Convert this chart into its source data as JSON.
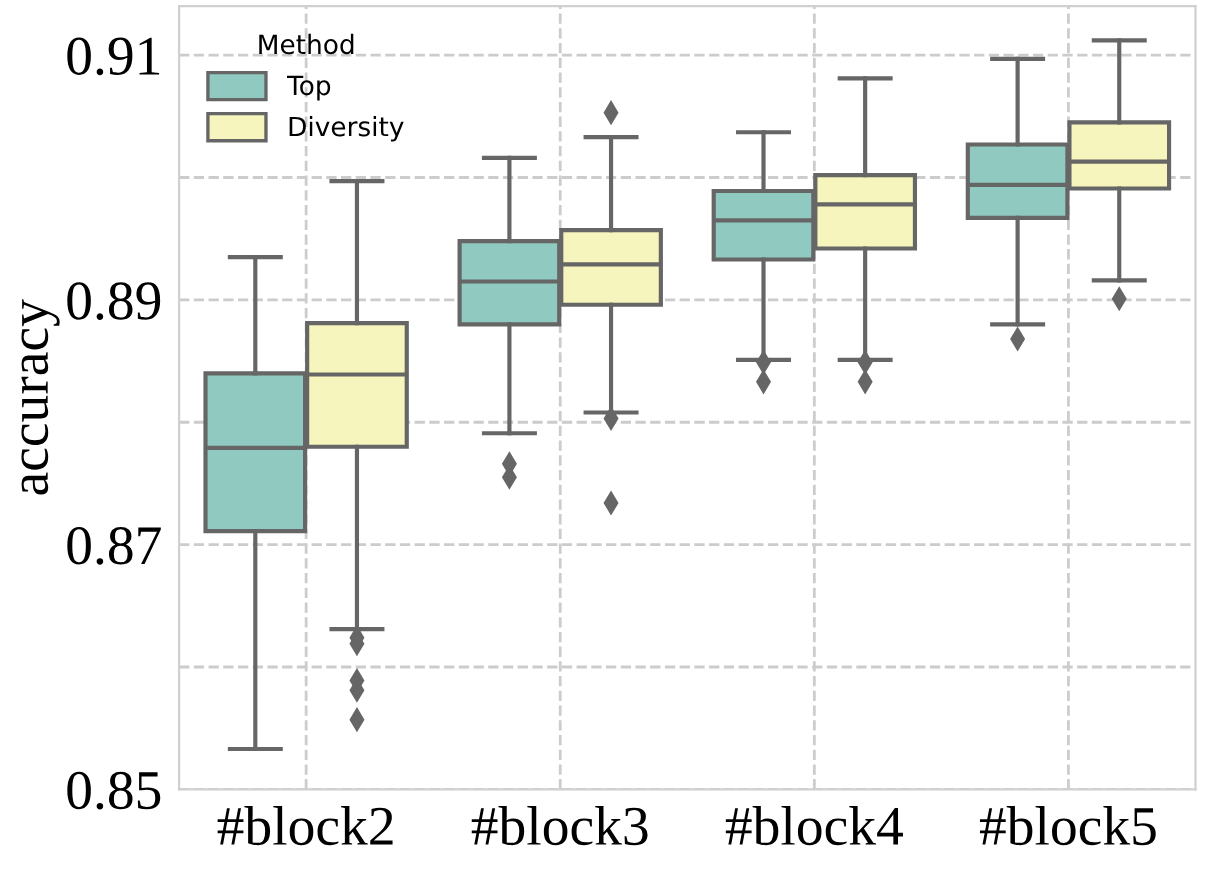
{
  "chart_data": {
    "type": "box",
    "ylabel": "accuracy",
    "legend_title": "Method",
    "categories": [
      "#block2",
      "#block3",
      "#block4",
      "#block5"
    ],
    "ylim": [
      0.85,
      0.914
    ],
    "yticks": [
      0.85,
      {
        "value": 0.86,
        "label": null
      },
      0.87,
      {
        "value": 0.88,
        "label": null
      },
      0.89,
      {
        "value": 0.9,
        "label": null
      },
      0.91
    ],
    "grid": true,
    "legend": "top left",
    "series": [
      {
        "name": "Top",
        "color": "#90c9bf",
        "boxes": [
          {
            "low": 0.8533,
            "q1": 0.8711,
            "median": 0.8779,
            "q3": 0.884,
            "high": 0.8935
          },
          {
            "low": 0.8791,
            "q1": 0.888,
            "median": 0.8915,
            "q3": 0.8948,
            "high": 0.9016,
            "outliers": [
              0.8766,
              0.8755
            ]
          },
          {
            "low": 0.8851,
            "q1": 0.8933,
            "median": 0.8965,
            "q3": 0.8989,
            "high": 0.9037,
            "outliers": [
              0.8849,
              0.8833
            ]
          },
          {
            "low": 0.888,
            "q1": 0.8967,
            "median": 0.8994,
            "q3": 0.9027,
            "high": 0.9097,
            "outliers": [
              0.8868
            ]
          }
        ]
      },
      {
        "name": "Diversity",
        "color": "#f5f5bd",
        "boxes": [
          {
            "low": 0.8631,
            "q1": 0.878,
            "median": 0.8839,
            "q3": 0.8881,
            "high": 0.8997,
            "outliers": [
              0.8624,
              0.8619,
              0.8589,
              0.8581,
              0.8557
            ]
          },
          {
            "low": 0.8808,
            "q1": 0.8896,
            "median": 0.8929,
            "q3": 0.8957,
            "high": 0.9033,
            "outliers": [
              0.9053,
              0.8803,
              0.8734
            ]
          },
          {
            "low": 0.8851,
            "q1": 0.8942,
            "median": 0.8978,
            "q3": 0.9002,
            "high": 0.9081,
            "outliers": [
              0.8849,
              0.8833
            ]
          },
          {
            "low": 0.8916,
            "q1": 0.8991,
            "median": 0.9013,
            "q3": 0.9045,
            "high": 0.9112,
            "outliers": [
              0.8901
            ]
          }
        ]
      }
    ]
  }
}
